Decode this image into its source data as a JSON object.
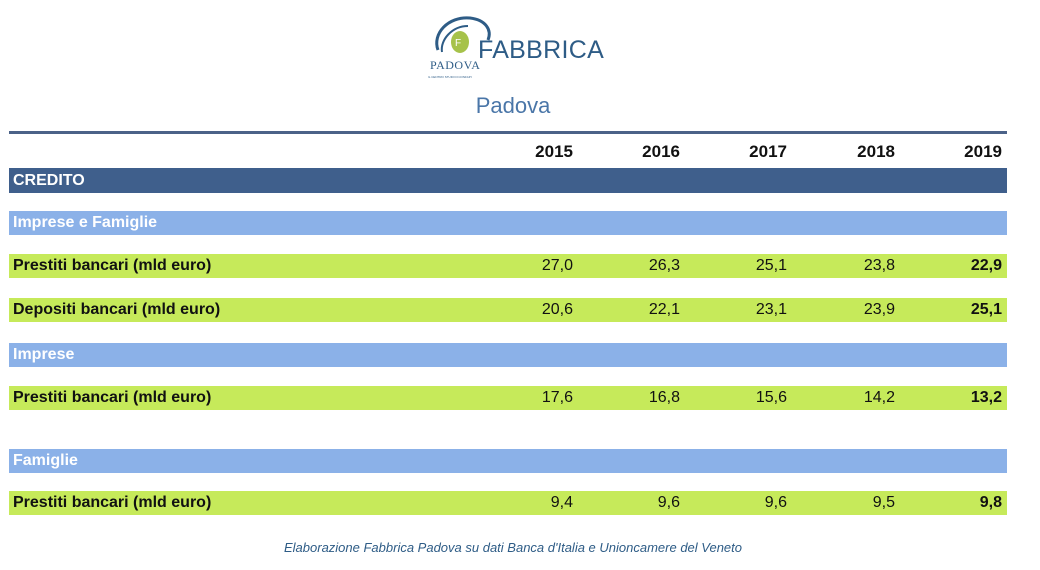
{
  "logo": {
    "word": "FABBRICA",
    "city": "PADOVA",
    "tagline": "IL CENTRO STUDI DI CONFAPI"
  },
  "subtitle": "Padova",
  "years": [
    "2015",
    "2016",
    "2017",
    "2018",
    "2019"
  ],
  "sections": {
    "credito": "CREDITO",
    "imprese_famiglie": "Imprese e Famiglie",
    "imprese": "Imprese",
    "famiglie": "Famiglie"
  },
  "rows": {
    "if_prestiti": {
      "label": "Prestiti bancari (mld euro)",
      "values": [
        "27,0",
        "26,3",
        "25,1",
        "23,8",
        "22,9"
      ]
    },
    "if_depositi": {
      "label": "Depositi bancari (mld euro)",
      "values": [
        "20,6",
        "22,1",
        "23,1",
        "23,9",
        "25,1"
      ]
    },
    "imp_prestiti": {
      "label": "Prestiti bancari (mld euro)",
      "values": [
        "17,6",
        "16,8",
        "15,6",
        "14,2",
        "13,2"
      ]
    },
    "fam_prestiti": {
      "label": "Prestiti bancari (mld euro)",
      "values": [
        "9,4",
        "9,6",
        "9,6",
        "9,5",
        "9,8"
      ]
    }
  },
  "caption": "Elaborazione Fabbrica Padova su dati Banca d'Italia e Unioncamere del Veneto",
  "colors": {
    "header_bar": "#3f5f8c",
    "section_bar": "#8bb1e8",
    "data_bar": "#c6ea5a",
    "brand": "#2e5c86"
  }
}
